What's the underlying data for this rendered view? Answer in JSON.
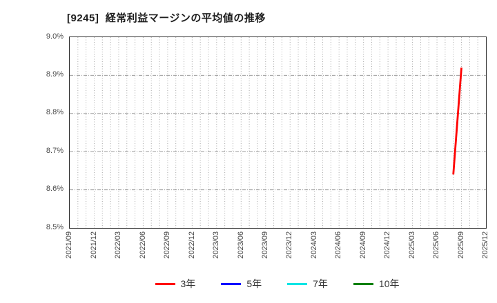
{
  "chart_data": {
    "type": "line",
    "title": "[9245]  経常利益マージンの平均値の推移",
    "x_axis": {
      "start": "2021/09",
      "end": "2025/12",
      "months_per_gridline": 1,
      "months_per_tick": 3,
      "tick_labels": [
        "2021/09",
        "2021/12",
        "2022/03",
        "2022/06",
        "2022/09",
        "2022/12",
        "2023/03",
        "2023/06",
        "2023/09",
        "2023/12",
        "2024/03",
        "2024/06",
        "2024/09",
        "2024/12",
        "2025/03",
        "2025/06",
        "2025/09",
        "2025/12"
      ]
    },
    "y_axis": {
      "min": 8.5,
      "max": 9.0,
      "step": 0.1,
      "unit": "%",
      "tick_labels": [
        "9.0%",
        "8.9%",
        "8.8%",
        "8.7%",
        "8.6%",
        "8.5%"
      ]
    },
    "grid": true,
    "legend_position": "bottom-center",
    "series": [
      {
        "name": "3年",
        "color": "#ff0000",
        "points": [
          [
            "2025/08",
            8.64
          ],
          [
            "2025/09",
            8.92
          ]
        ]
      },
      {
        "name": "5年",
        "color": "#0000ff",
        "points": []
      },
      {
        "name": "7年",
        "color": "#00e5e5",
        "points": []
      },
      {
        "name": "10年",
        "color": "#008000",
        "points": []
      }
    ],
    "colors": {
      "grid_vertical": "#ababab",
      "grid_horizontal": "#9a9a9a",
      "axis_border": "#2e2e2e",
      "tick_text": "#474747",
      "title_text": "#1f1f1f"
    }
  }
}
